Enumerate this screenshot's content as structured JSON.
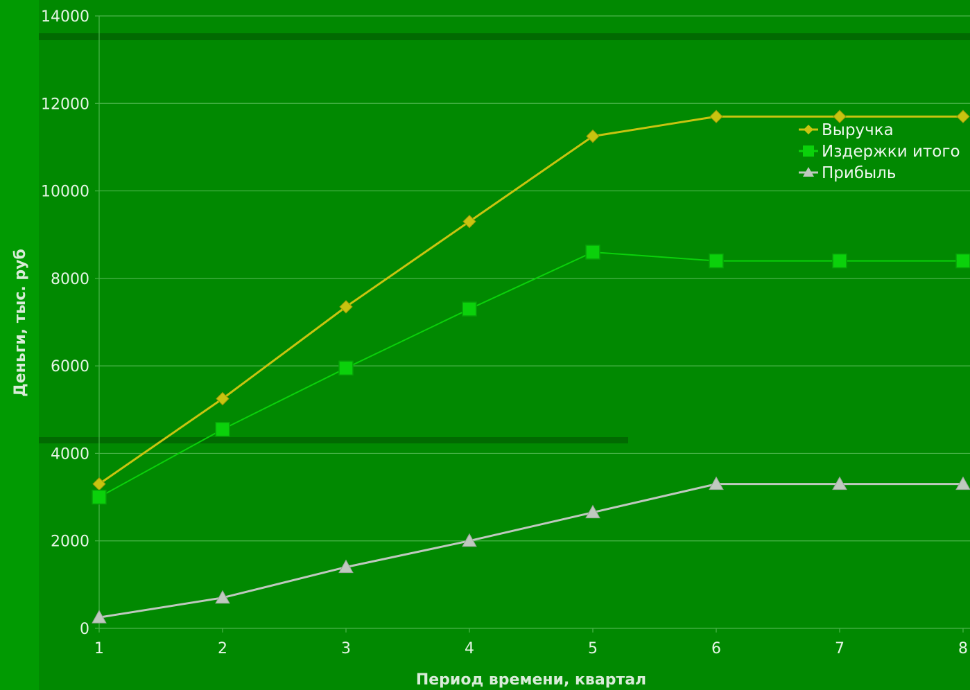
{
  "colors": {
    "page_background": "#019a02",
    "plot_background": "#018901",
    "gridline": "#4cb54c",
    "revenue": "#c8c410",
    "costs": "#0bd10b",
    "profit": "#bfc9bf"
  },
  "chart_data": {
    "type": "line",
    "title": "",
    "xlabel": "Период времени, квартал",
    "ylabel": "Деньги, тыс. руб",
    "x": [
      1,
      2,
      3,
      4,
      5,
      6,
      7,
      8
    ],
    "x_tick_labels": [
      "1",
      "2",
      "3",
      "4",
      "5",
      "6",
      "7",
      "8"
    ],
    "xlim": [
      1,
      8
    ],
    "ylim": [
      0,
      14000
    ],
    "y_ticks": [
      0,
      2000,
      4000,
      6000,
      8000,
      10000,
      12000,
      14000
    ],
    "y_tick_labels": [
      "0",
      "2000",
      "4000",
      "6000",
      "8000",
      "10000",
      "12000",
      "14000"
    ],
    "grid": true,
    "legend_position": "top-right",
    "series": [
      {
        "name": "Выручка",
        "marker": "diamond",
        "values": [
          3300,
          5250,
          7350,
          9300,
          11250,
          11700,
          11700,
          11700
        ]
      },
      {
        "name": "Издержки итого",
        "marker": "square",
        "values": [
          3000,
          4550,
          5950,
          7300,
          8600,
          8400,
          8400,
          8400
        ]
      },
      {
        "name": "Прибыль",
        "marker": "triangle",
        "values": [
          250,
          700,
          1400,
          2000,
          2650,
          3300,
          3300,
          3300
        ]
      }
    ]
  }
}
